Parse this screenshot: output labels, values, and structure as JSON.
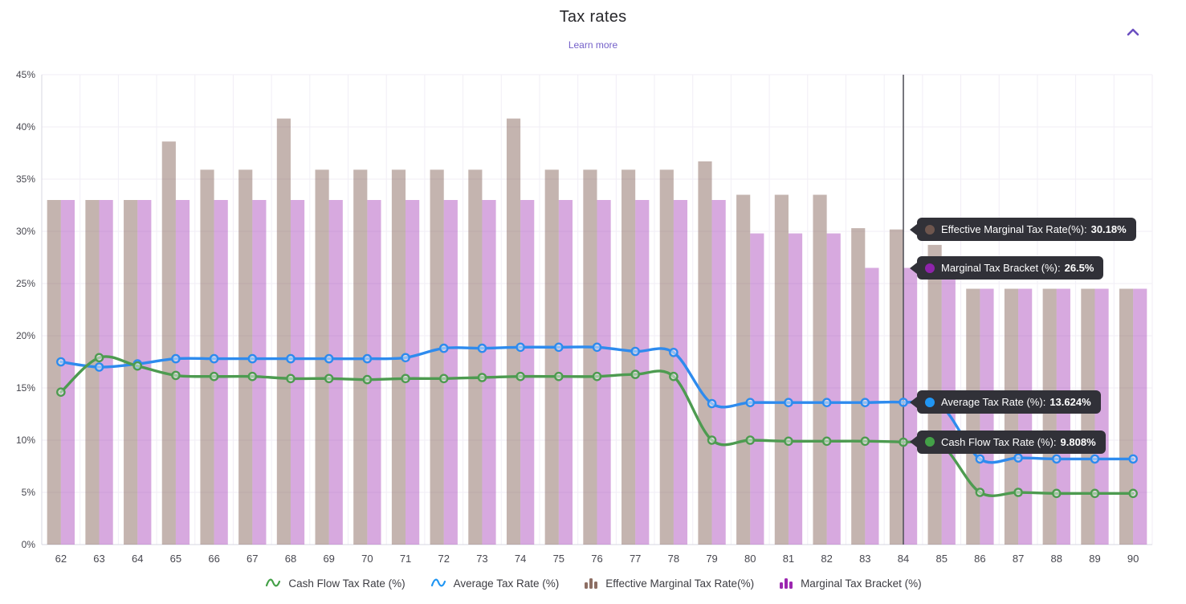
{
  "header": {
    "title": "Tax rates",
    "learn_more": "Learn more"
  },
  "colors": {
    "accent_purple": "#6b4fc0",
    "link_purple": "#7460c9",
    "tooltip_bg": "#313138",
    "crosshair": "#55555c",
    "gridline": "#f1eef6",
    "axis_line": "#d7d7e0",
    "axis_text": "#47474f",
    "bar_effective_marginal": "rgba(121,85,72,0.44)",
    "bar_marginal_bracket": "rgba(156,39,176,0.40)",
    "line_cash_flow": "#4d9b50",
    "line_average": "#2e8bee"
  },
  "tooltips": [
    {
      "label": "Effective Marginal Tax Rate(%):",
      "value": "30.18%",
      "anchor_value": 30.18,
      "color": "#6e564e"
    },
    {
      "label": "Marginal Tax Bracket (%):",
      "value": "26.5%",
      "anchor_value": 26.5,
      "color": "#8e24aa"
    },
    {
      "label": "Average Tax Rate (%):",
      "value": "13.624%",
      "anchor_value": 13.624,
      "color": "#2196f3"
    },
    {
      "label": "Cash Flow Tax Rate (%):",
      "value": "9.808%",
      "anchor_value": 9.808,
      "color": "#43a047"
    }
  ],
  "legend": [
    {
      "label": "Cash Flow Tax Rate (%)",
      "type": "line",
      "color": "#43a047"
    },
    {
      "label": "Average Tax Rate (%)",
      "type": "line",
      "color": "#2196f3"
    },
    {
      "label": "Effective Marginal Tax Rate(%)",
      "type": "bar",
      "color": "#8d6e63"
    },
    {
      "label": "Marginal Tax Bracket (%)",
      "type": "bar",
      "color": "#9c27b0"
    }
  ],
  "chart_data": {
    "type": "combo-bar-line",
    "title": "Tax rates",
    "xlabel": "",
    "ylabel": "",
    "x": [
      62,
      63,
      64,
      65,
      66,
      67,
      68,
      69,
      70,
      71,
      72,
      73,
      74,
      75,
      76,
      77,
      78,
      79,
      80,
      81,
      82,
      83,
      84,
      85,
      86,
      87,
      88,
      89,
      90
    ],
    "ylim": [
      0,
      45
    ],
    "ytick_step": 5,
    "ytick_suffix": "%",
    "grid": true,
    "legend_position": "bottom",
    "crosshair_x": 84,
    "series": [
      {
        "name": "Effective Marginal Tax Rate(%)",
        "type": "bar",
        "color": "rgba(121,85,72,0.44)",
        "values": [
          33,
          33,
          33,
          38.6,
          35.9,
          35.9,
          40.8,
          35.9,
          35.9,
          35.9,
          35.9,
          35.9,
          40.8,
          35.9,
          35.9,
          35.9,
          35.9,
          36.7,
          33.5,
          33.5,
          33.5,
          30.3,
          30.18,
          28.7,
          24.5,
          24.5,
          24.5,
          24.5,
          24.5
        ]
      },
      {
        "name": "Marginal Tax Bracket (%)",
        "type": "bar",
        "color": "rgba(156,39,176,0.40)",
        "values": [
          33,
          33,
          33,
          33,
          33,
          33,
          33,
          33,
          33,
          33,
          33,
          33,
          33,
          33,
          33,
          33,
          33,
          33,
          29.8,
          29.8,
          29.8,
          26.5,
          26.5,
          26.5,
          24.5,
          24.5,
          24.5,
          24.5,
          24.5
        ]
      },
      {
        "name": "Average Tax Rate (%)",
        "type": "line",
        "color": "#2e8bee",
        "values": [
          17.5,
          17.0,
          17.3,
          17.8,
          17.8,
          17.8,
          17.8,
          17.8,
          17.8,
          17.9,
          18.8,
          18.8,
          18.9,
          18.9,
          18.9,
          18.5,
          18.4,
          13.5,
          13.6,
          13.6,
          13.6,
          13.6,
          13.624,
          13.2,
          8.2,
          8.3,
          8.2,
          8.2,
          8.2
        ]
      },
      {
        "name": "Cash Flow Tax Rate (%)",
        "type": "line",
        "color": "#4d9b50",
        "values": [
          14.6,
          17.9,
          17.1,
          16.2,
          16.1,
          16.1,
          15.9,
          15.9,
          15.8,
          15.9,
          15.9,
          16.0,
          16.1,
          16.1,
          16.1,
          16.3,
          16.1,
          10.0,
          10.0,
          9.9,
          9.9,
          9.9,
          9.808,
          9.5,
          5.0,
          5.0,
          4.9,
          4.9,
          4.9
        ]
      }
    ]
  }
}
